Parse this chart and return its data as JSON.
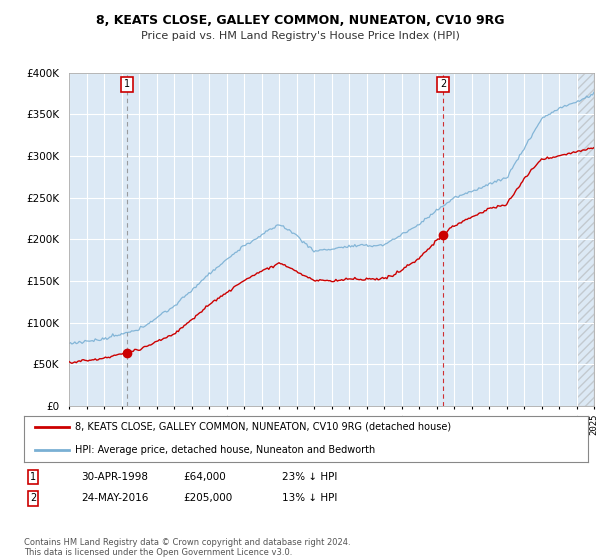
{
  "title": "8, KEATS CLOSE, GALLEY COMMON, NUNEATON, CV10 9RG",
  "subtitle": "Price paid vs. HM Land Registry's House Price Index (HPI)",
  "property_color": "#cc0000",
  "hpi_color": "#7ab0d4",
  "sale1_year": 1998.33,
  "sale1_price": 64000,
  "sale1_label": "1",
  "sale2_year": 2016.39,
  "sale2_price": 205000,
  "sale2_label": "2",
  "marker_color": "#cc0000",
  "legend_entry1": "8, KEATS CLOSE, GALLEY COMMON, NUNEATON, CV10 9RG (detached house)",
  "legend_entry2": "HPI: Average price, detached house, Nuneaton and Bedworth",
  "table_row1": [
    "1",
    "30-APR-1998",
    "£64,000",
    "23% ↓ HPI"
  ],
  "table_row2": [
    "2",
    "24-MAY-2016",
    "£205,000",
    "13% ↓ HPI"
  ],
  "footnote": "Contains HM Land Registry data © Crown copyright and database right 2024.\nThis data is licensed under the Open Government Licence v3.0.",
  "ylim": [
    0,
    400000
  ],
  "xlim_start": 1995,
  "xlim_end": 2025,
  "chart_bg": "#dce9f5",
  "fig_bg": "#ffffff",
  "grid_color": "#ffffff"
}
